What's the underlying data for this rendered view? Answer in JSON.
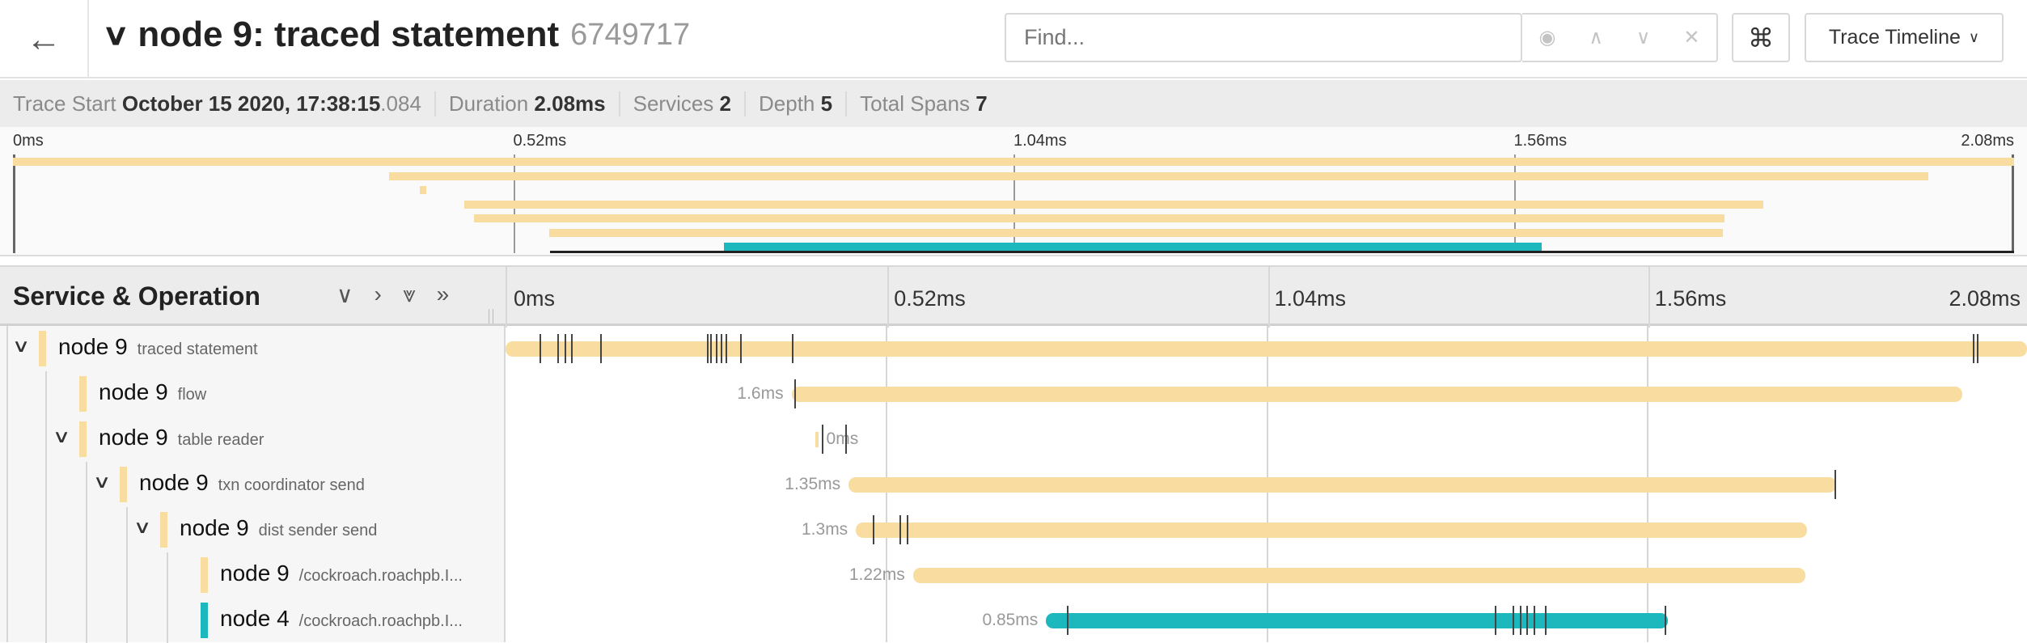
{
  "header": {
    "back_icon": "arrow-left-icon",
    "collapse_icon": "chevron-down-icon",
    "title": "node 9: traced statement",
    "trace_id": "6749717"
  },
  "search": {
    "placeholder": "Find...",
    "value": ""
  },
  "search_controls": [
    "target-icon",
    "chevron-up-icon",
    "chevron-down-icon",
    "close-icon"
  ],
  "shortcut_icon": "⌘",
  "view_select": {
    "label": "Trace Timeline"
  },
  "summary": {
    "trace_start_label": "Trace Start",
    "trace_start": "October 15 2020, 17:38:15",
    "trace_start_ms": ".084",
    "duration_label": "Duration",
    "duration": "2.08ms",
    "services_label": "Services",
    "services": "2",
    "depth_label": "Depth",
    "depth": "5",
    "spans_label": "Total Spans",
    "spans": "7"
  },
  "ticks": [
    "0ms",
    "0.52ms",
    "1.04ms",
    "1.56ms",
    "2.08ms"
  ],
  "total_ms": 2.08,
  "colors": {
    "node 9": "#f8dca0",
    "node 4": "#1cb8bd"
  },
  "columns": {
    "title": "Service & Operation"
  },
  "spans": [
    {
      "service": "node 9",
      "operation": "traced statement",
      "depth": 0,
      "expandable": true,
      "start": 0,
      "duration": 2.08,
      "duration_label": "",
      "logs": [
        0.046,
        0.071,
        0.081,
        0.09,
        0.129,
        0.275,
        0.28,
        0.287,
        0.294,
        0.301,
        0.321,
        0.391,
        2.006,
        2.011
      ]
    },
    {
      "service": "node 9",
      "operation": "flow",
      "depth": 1,
      "expandable": false,
      "start": 0.391,
      "duration": 1.6,
      "duration_label": "1.6ms",
      "logs": [
        0.395
      ]
    },
    {
      "service": "node 9",
      "operation": "table reader",
      "depth": 1,
      "expandable": true,
      "start": 0.423,
      "duration": 0,
      "duration_label": "0ms",
      "logs": [
        0.432,
        0.464
      ]
    },
    {
      "service": "node 9",
      "operation": "txn coordinator send",
      "depth": 2,
      "expandable": true,
      "start": 0.469,
      "duration": 1.35,
      "duration_label": "1.35ms",
      "logs": [
        1.817
      ]
    },
    {
      "service": "node 9",
      "operation": "dist sender send",
      "depth": 3,
      "expandable": true,
      "start": 0.479,
      "duration": 1.3,
      "duration_label": "1.3ms",
      "logs": [
        0.502,
        0.539,
        0.548
      ]
    },
    {
      "service": "node 9",
      "operation": "/cockroach.roachpb.I...",
      "depth": 4,
      "expandable": false,
      "start": 0.557,
      "duration": 1.22,
      "duration_label": "1.22ms",
      "logs": []
    },
    {
      "service": "node 4",
      "operation": "/cockroach.roachpb.I...",
      "depth": 4,
      "expandable": false,
      "start": 0.739,
      "duration": 0.85,
      "duration_label": "0.85ms",
      "logs": [
        0.767,
        1.352,
        1.377,
        1.387,
        1.396,
        1.405,
        1.421,
        1.585
      ]
    }
  ]
}
